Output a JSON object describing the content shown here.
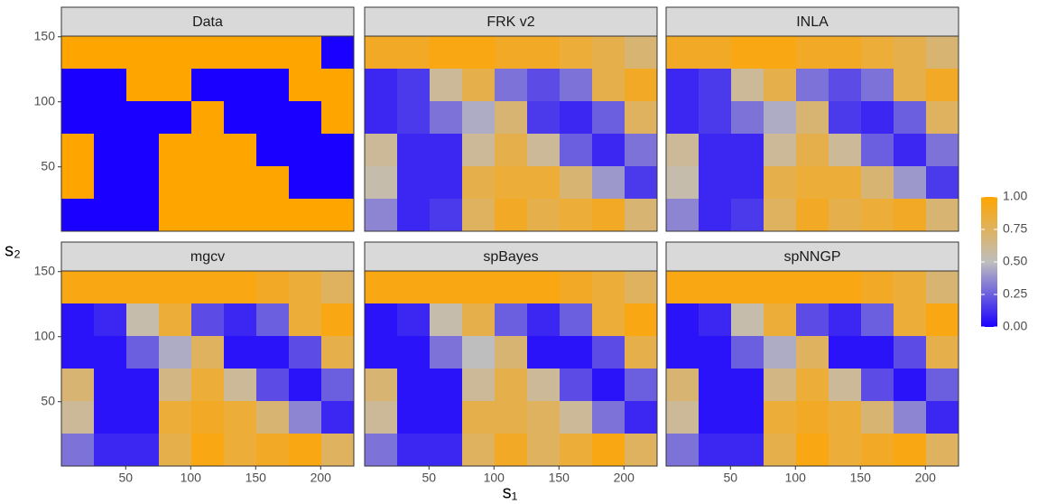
{
  "chart_data": {
    "type": "heatmap",
    "xlabel": "s₁",
    "ylabel": "s₂",
    "xlim": [
      0.5,
      225.5
    ],
    "ylim": [
      0.5,
      150.5
    ],
    "xticks": [
      50,
      100,
      150,
      200
    ],
    "yticks": [
      50,
      100,
      150
    ],
    "x": [
      13,
      38,
      63,
      88,
      113,
      138,
      163,
      188,
      213
    ],
    "y": [
      138,
      113,
      88,
      63,
      38,
      13
    ],
    "zlim": [
      0,
      1
    ],
    "zticks": [
      {
        "value": 0,
        "label": "0.00"
      },
      {
        "value": 0.25,
        "label": "0.25"
      },
      {
        "value": 0.5,
        "label": "0.50"
      },
      {
        "value": 0.75,
        "label": "0.75"
      },
      {
        "value": 1,
        "label": "1.00"
      }
    ],
    "colors": [
      "#1a00ff",
      "#bebebe",
      "#ffa500"
    ],
    "panels": [
      {
        "title": "Data",
        "z": [
          [
            1,
            1,
            1,
            1,
            1,
            1,
            1,
            1,
            0
          ],
          [
            0,
            0,
            1,
            1,
            0,
            0,
            0,
            1,
            1
          ],
          [
            0,
            0,
            0,
            0,
            1,
            0,
            0,
            0,
            1
          ],
          [
            1,
            0,
            0,
            1,
            1,
            1,
            0,
            0,
            0
          ],
          [
            1,
            0,
            0,
            1,
            1,
            1,
            1,
            0,
            0
          ],
          [
            0,
            0,
            0,
            1,
            1,
            1,
            1,
            1,
            1
          ]
        ]
      },
      {
        "title": "FRK v2",
        "z": [
          [
            0.9,
            0.9,
            0.95,
            0.95,
            0.9,
            0.9,
            0.85,
            0.8,
            0.7
          ],
          [
            0.1,
            0.15,
            0.6,
            0.8,
            0.3,
            0.2,
            0.3,
            0.8,
            0.9
          ],
          [
            0.1,
            0.15,
            0.3,
            0.45,
            0.7,
            0.15,
            0.1,
            0.25,
            0.75
          ],
          [
            0.6,
            0.1,
            0.1,
            0.6,
            0.8,
            0.6,
            0.25,
            0.1,
            0.3
          ],
          [
            0.55,
            0.1,
            0.1,
            0.8,
            0.85,
            0.85,
            0.7,
            0.4,
            0.15
          ],
          [
            0.35,
            0.1,
            0.15,
            0.75,
            0.9,
            0.8,
            0.85,
            0.9,
            0.7
          ]
        ]
      },
      {
        "title": "INLA",
        "z": [
          [
            0.9,
            0.9,
            0.95,
            0.95,
            0.9,
            0.9,
            0.85,
            0.8,
            0.7
          ],
          [
            0.1,
            0.15,
            0.6,
            0.8,
            0.3,
            0.2,
            0.3,
            0.8,
            0.9
          ],
          [
            0.1,
            0.15,
            0.3,
            0.45,
            0.7,
            0.15,
            0.1,
            0.25,
            0.75
          ],
          [
            0.6,
            0.1,
            0.1,
            0.6,
            0.8,
            0.6,
            0.25,
            0.1,
            0.3
          ],
          [
            0.55,
            0.1,
            0.1,
            0.8,
            0.85,
            0.85,
            0.7,
            0.4,
            0.15
          ],
          [
            0.35,
            0.1,
            0.15,
            0.75,
            0.9,
            0.8,
            0.85,
            0.9,
            0.7
          ]
        ]
      },
      {
        "title": "mgcv",
        "z": [
          [
            0.95,
            0.95,
            0.95,
            0.95,
            0.95,
            0.95,
            0.9,
            0.85,
            0.75
          ],
          [
            0.05,
            0.1,
            0.55,
            0.85,
            0.2,
            0.1,
            0.25,
            0.85,
            0.95
          ],
          [
            0.05,
            0.05,
            0.25,
            0.45,
            0.75,
            0.05,
            0.05,
            0.2,
            0.8
          ],
          [
            0.7,
            0.05,
            0.05,
            0.65,
            0.85,
            0.6,
            0.2,
            0.05,
            0.25
          ],
          [
            0.6,
            0.05,
            0.05,
            0.85,
            0.9,
            0.85,
            0.7,
            0.35,
            0.1
          ],
          [
            0.3,
            0.1,
            0.1,
            0.8,
            0.95,
            0.85,
            0.9,
            0.95,
            0.75
          ]
        ]
      },
      {
        "title": "spBayes",
        "z": [
          [
            0.95,
            0.95,
            0.95,
            0.95,
            0.95,
            0.95,
            0.9,
            0.85,
            0.75
          ],
          [
            0.05,
            0.1,
            0.55,
            0.8,
            0.25,
            0.1,
            0.25,
            0.85,
            0.95
          ],
          [
            0.05,
            0.05,
            0.3,
            0.5,
            0.7,
            0.05,
            0.05,
            0.2,
            0.8
          ],
          [
            0.7,
            0.05,
            0.05,
            0.6,
            0.8,
            0.6,
            0.2,
            0.05,
            0.25
          ],
          [
            0.6,
            0.05,
            0.05,
            0.8,
            0.8,
            0.75,
            0.6,
            0.3,
            0.1
          ],
          [
            0.3,
            0.1,
            0.1,
            0.75,
            0.9,
            0.75,
            0.85,
            0.95,
            0.75
          ]
        ]
      },
      {
        "title": "spNNGP",
        "z": [
          [
            0.95,
            0.95,
            0.95,
            0.95,
            0.95,
            0.95,
            0.9,
            0.85,
            0.7
          ],
          [
            0.05,
            0.1,
            0.55,
            0.85,
            0.2,
            0.1,
            0.25,
            0.85,
            0.95
          ],
          [
            0.05,
            0.05,
            0.25,
            0.45,
            0.75,
            0.05,
            0.05,
            0.2,
            0.8
          ],
          [
            0.7,
            0.05,
            0.05,
            0.65,
            0.85,
            0.6,
            0.2,
            0.05,
            0.25
          ],
          [
            0.6,
            0.05,
            0.05,
            0.85,
            0.9,
            0.85,
            0.7,
            0.35,
            0.1
          ],
          [
            0.3,
            0.1,
            0.1,
            0.8,
            0.95,
            0.85,
            0.9,
            0.95,
            0.75
          ]
        ]
      }
    ]
  }
}
